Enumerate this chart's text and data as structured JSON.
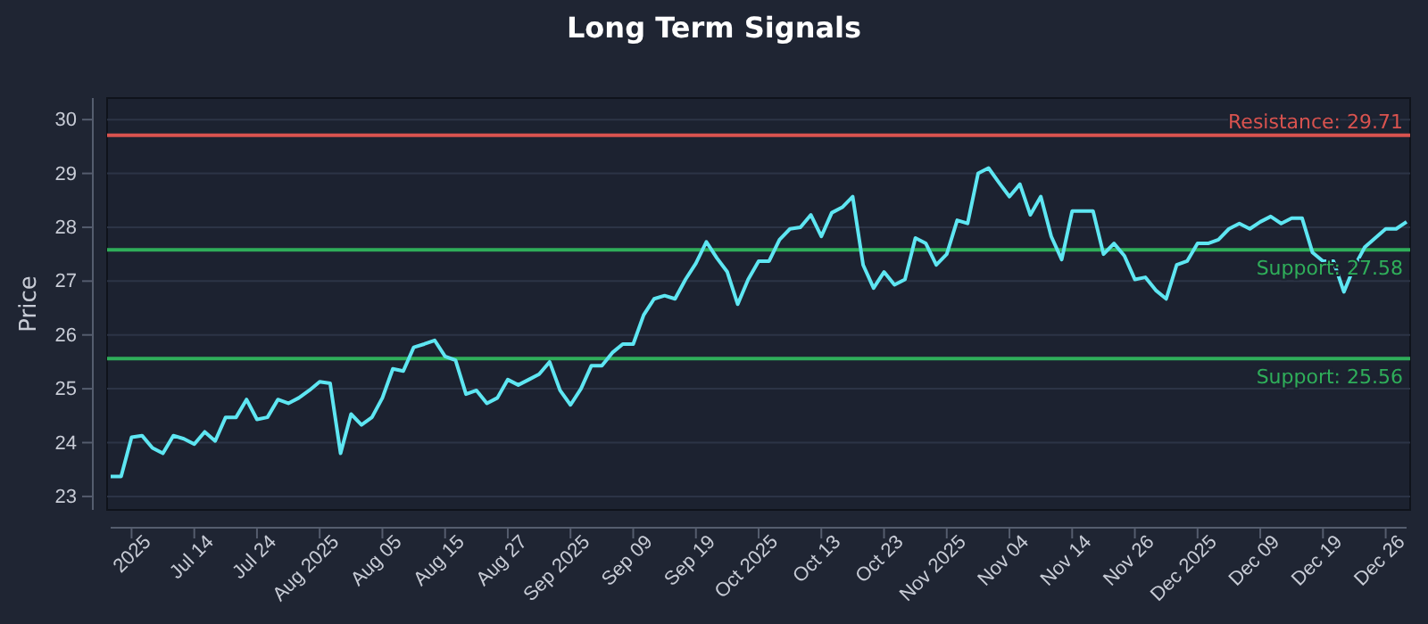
{
  "chart_data": {
    "type": "line",
    "title": "Long Term Signals",
    "ylabel": "Price",
    "categories": [
      null,
      null,
      "2025",
      null,
      null,
      null,
      null,
      null,
      "Jul 14",
      null,
      null,
      null,
      null,
      null,
      "Jul 24",
      null,
      null,
      null,
      null,
      null,
      "Aug 2025",
      null,
      null,
      null,
      null,
      null,
      "Aug 05",
      null,
      null,
      null,
      null,
      null,
      "Aug 15",
      null,
      null,
      null,
      null,
      null,
      "Aug 27",
      null,
      null,
      null,
      null,
      null,
      "Sep 2025",
      null,
      null,
      null,
      null,
      null,
      "Sep 09",
      null,
      null,
      null,
      null,
      null,
      "Sep 19",
      null,
      null,
      null,
      null,
      null,
      "Oct 2025",
      null,
      null,
      null,
      null,
      null,
      "Oct 13",
      null,
      null,
      null,
      null,
      null,
      "Oct 23",
      null,
      null,
      null,
      null,
      null,
      "Nov 2025",
      null,
      null,
      null,
      null,
      null,
      "Nov 04",
      null,
      null,
      null,
      null,
      null,
      "Nov 14",
      null,
      null,
      null,
      null,
      null,
      "Nov 26",
      null,
      null,
      null,
      null,
      null,
      "Dec 2025",
      null,
      null,
      null,
      null,
      null,
      "Dec 09",
      null,
      null,
      null,
      null,
      null,
      "Dec 19",
      null,
      null,
      null,
      null,
      null,
      "Dec 26",
      null,
      null
    ],
    "series": [
      {
        "color": "#5ee6f2",
        "values": [
          23.37,
          23.37,
          24.1,
          24.13,
          23.9,
          23.8,
          24.13,
          24.07,
          23.97,
          24.2,
          24.03,
          24.47,
          24.47,
          24.8,
          24.43,
          24.47,
          24.8,
          24.73,
          24.83,
          24.97,
          25.13,
          25.1,
          23.8,
          24.53,
          24.33,
          24.47,
          24.83,
          25.37,
          25.33,
          25.77,
          25.83,
          25.9,
          25.6,
          25.53,
          24.9,
          24.97,
          24.73,
          24.83,
          25.17,
          25.07,
          25.17,
          25.27,
          25.5,
          24.97,
          24.7,
          25.0,
          25.43,
          25.43,
          25.67,
          25.83,
          25.83,
          26.37,
          26.67,
          26.73,
          26.67,
          27.03,
          27.33,
          27.73,
          27.43,
          27.17,
          26.57,
          27.03,
          27.37,
          27.37,
          27.77,
          27.97,
          28.0,
          28.23,
          27.83,
          28.27,
          28.37,
          28.57,
          27.3,
          26.87,
          27.17,
          26.93,
          27.03,
          27.8,
          27.7,
          27.3,
          27.5,
          28.13,
          28.07,
          29.0,
          29.1,
          28.83,
          28.57,
          28.8,
          28.23,
          28.57,
          27.83,
          27.4,
          28.3,
          28.3,
          28.3,
          27.5,
          27.7,
          27.47,
          27.03,
          27.07,
          26.83,
          26.67,
          27.3,
          27.37,
          27.7,
          27.7,
          27.77,
          27.97,
          28.07,
          27.97,
          28.1,
          28.2,
          28.07,
          28.17,
          28.17,
          27.53,
          27.37,
          27.37,
          26.8,
          27.27,
          27.63,
          27.8,
          27.97,
          27.97,
          28.1
        ]
      }
    ],
    "ylim": [
      22.75,
      30.4
    ],
    "yticks": [
      23,
      24,
      25,
      26,
      27,
      28,
      29,
      30
    ],
    "grid": "y",
    "line_style": "solid",
    "ref_lines": [
      {
        "axis": "y",
        "value": 29.71,
        "label": "Resistance: 29.71",
        "color": "#d9534f"
      },
      {
        "axis": "y",
        "value": 27.58,
        "label": "Support: 27.58",
        "color": "#2fae5a"
      },
      {
        "axis": "y",
        "value": 25.56,
        "label": "Support: 25.56",
        "color": "#2fae5a"
      }
    ]
  }
}
